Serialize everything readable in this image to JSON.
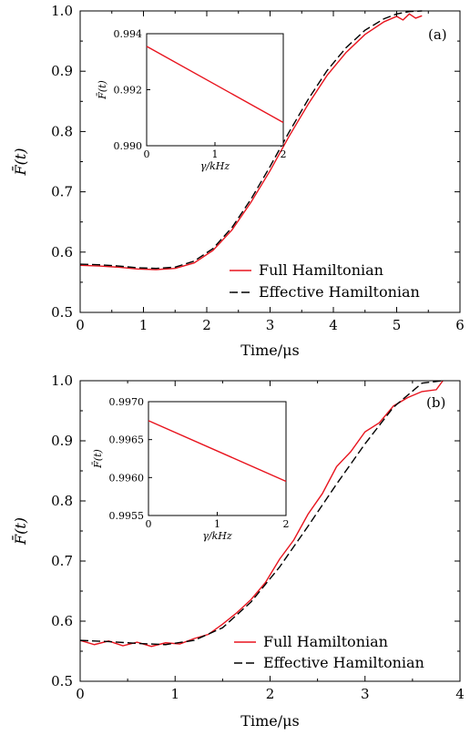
{
  "chart_data": [
    {
      "type": "line",
      "panel_tag": "(a)",
      "xlabel": "Time/μs",
      "ylabel": "F̄(t)",
      "xlim": [
        0,
        6
      ],
      "ylim": [
        0.5,
        1.0
      ],
      "xticks": [
        0,
        1,
        2,
        3,
        4,
        5,
        6
      ],
      "yticks": [
        0.5,
        0.6,
        0.7,
        0.8,
        0.9,
        1.0
      ],
      "xtick_labels": [
        "0",
        "1",
        "2",
        "3",
        "4",
        "5",
        "6"
      ],
      "ytick_labels": [
        "0.5",
        "0.6",
        "0.7",
        "0.8",
        "0.9",
        "1.0"
      ],
      "legend_placement": "bottom-right",
      "series": [
        {
          "name": "Full Hamiltonian",
          "color": "#e8141e",
          "style": "solid",
          "x": [
            0,
            0.3,
            0.6,
            0.9,
            1.2,
            1.5,
            1.8,
            2.1,
            2.4,
            2.7,
            3.0,
            3.3,
            3.6,
            3.9,
            4.2,
            4.5,
            4.8,
            5.0,
            5.1,
            5.2,
            5.3,
            5.4
          ],
          "y": [
            0.578,
            0.577,
            0.575,
            0.572,
            0.571,
            0.573,
            0.582,
            0.603,
            0.637,
            0.683,
            0.735,
            0.792,
            0.845,
            0.893,
            0.931,
            0.961,
            0.982,
            0.991,
            0.985,
            0.995,
            0.988,
            0.992
          ]
        },
        {
          "name": "Effective Hamiltonian",
          "color": "#000000",
          "style": "dashed",
          "x": [
            0,
            0.3,
            0.6,
            0.9,
            1.2,
            1.5,
            1.8,
            2.1,
            2.4,
            2.7,
            3.0,
            3.3,
            3.6,
            3.9,
            4.2,
            4.5,
            4.8,
            5.0,
            5.2,
            5.4
          ],
          "y": [
            0.58,
            0.579,
            0.577,
            0.574,
            0.573,
            0.575,
            0.585,
            0.606,
            0.641,
            0.688,
            0.742,
            0.799,
            0.853,
            0.901,
            0.939,
            0.968,
            0.987,
            0.995,
            0.999,
            1.0
          ]
        }
      ],
      "inset": {
        "xlabel": "γ/kHz",
        "ylabel": "F̄(t)",
        "xlim": [
          0,
          2
        ],
        "ylim": [
          0.99,
          0.994
        ],
        "xticks": [
          0,
          1,
          2
        ],
        "yticks": [
          0.99,
          0.992,
          0.994
        ],
        "xtick_labels": [
          "0",
          "1",
          "2"
        ],
        "ytick_labels": [
          "0.990",
          "0.992",
          "0.994"
        ],
        "series": [
          {
            "color": "#e8141e",
            "x": [
              0,
              2
            ],
            "y": [
              0.99355,
              0.99083
            ]
          }
        ]
      }
    },
    {
      "type": "line",
      "panel_tag": "(b)",
      "xlabel": "Time/μs",
      "ylabel": "F̄(t)",
      "xlim": [
        0,
        4
      ],
      "ylim": [
        0.5,
        1.0
      ],
      "xticks": [
        0,
        1,
        2,
        3,
        4
      ],
      "yticks": [
        0.5,
        0.6,
        0.7,
        0.8,
        0.9,
        1.0
      ],
      "xtick_labels": [
        "0",
        "1",
        "2",
        "3",
        "4"
      ],
      "ytick_labels": [
        "0.5",
        "0.6",
        "0.7",
        "0.8",
        "0.9",
        "1.0"
      ],
      "legend_placement": "bottom-right",
      "series": [
        {
          "name": "Full Hamiltonian",
          "color": "#e8141e",
          "style": "solid",
          "x": [
            0,
            0.15,
            0.3,
            0.45,
            0.6,
            0.75,
            0.9,
            1.05,
            1.2,
            1.35,
            1.5,
            1.65,
            1.8,
            1.95,
            2.1,
            2.25,
            2.4,
            2.55,
            2.7,
            2.85,
            3.0,
            3.15,
            3.3,
            3.45,
            3.6,
            3.75,
            3.82
          ],
          "y": [
            0.568,
            0.561,
            0.567,
            0.559,
            0.565,
            0.558,
            0.564,
            0.562,
            0.571,
            0.578,
            0.595,
            0.614,
            0.636,
            0.664,
            0.703,
            0.735,
            0.778,
            0.812,
            0.857,
            0.882,
            0.915,
            0.93,
            0.958,
            0.972,
            0.982,
            0.985,
            1.0
          ]
        },
        {
          "name": "Effective Hamiltonian",
          "color": "#000000",
          "style": "dashed",
          "x": [
            0,
            0.3,
            0.6,
            0.9,
            1.2,
            1.5,
            1.8,
            2.1,
            2.4,
            2.7,
            3.0,
            3.3,
            3.6,
            3.82
          ],
          "y": [
            0.568,
            0.566,
            0.563,
            0.561,
            0.568,
            0.589,
            0.632,
            0.69,
            0.758,
            0.828,
            0.895,
            0.956,
            0.996,
            1.0
          ]
        }
      ],
      "inset": {
        "xlabel": "γ/kHz",
        "ylabel": "F̄(t)",
        "xlim": [
          0,
          2
        ],
        "ylim": [
          0.9955,
          0.997
        ],
        "xticks": [
          0,
          1,
          2
        ],
        "yticks": [
          0.9955,
          0.996,
          0.9965,
          0.997
        ],
        "xtick_labels": [
          "0",
          "1",
          "2"
        ],
        "ytick_labels": [
          "0.9955",
          "0.9960",
          "0.9965",
          "0.9970"
        ],
        "series": [
          {
            "color": "#e8141e",
            "x": [
              0,
              2
            ],
            "y": [
              0.99675,
              0.99595
            ]
          }
        ]
      }
    }
  ]
}
